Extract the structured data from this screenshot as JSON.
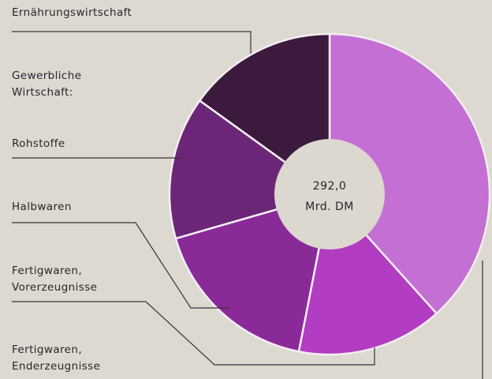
{
  "chart_data": {
    "type": "donut",
    "group_label": "Gewerbliche Wirtschaft:",
    "categories": [
      "Fertigwaren, Enderzeugnisse",
      "Fertigwaren, Vorerzeugnisse",
      "Halbwaren",
      "Rohstoffe",
      "Ernährungswirtschaft"
    ],
    "values": [
      112,
      43,
      51,
      42,
      44
    ],
    "colors": [
      "#c46fd3",
      "#b23cc2",
      "#8a2a99",
      "#6c2677",
      "#3b1a3d"
    ],
    "center_label": [
      "292,0",
      "Mrd. DM"
    ]
  }
}
